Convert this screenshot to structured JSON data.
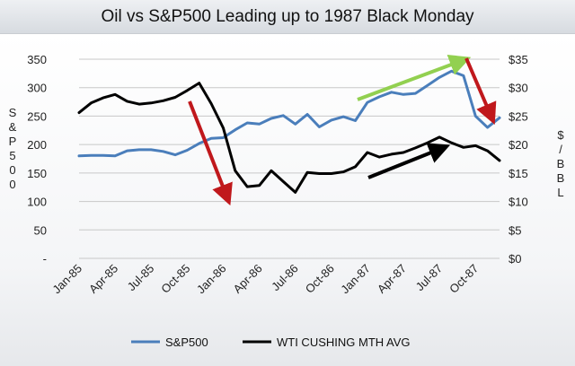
{
  "chart_data": {
    "type": "line",
    "title": "Oil vs S&P500 Leading up to 1987 Black Monday",
    "categories": [
      "Jan-85",
      "Feb-85",
      "Mar-85",
      "Apr-85",
      "May-85",
      "Jun-85",
      "Jul-85",
      "Aug-85",
      "Sep-85",
      "Oct-85",
      "Nov-85",
      "Dec-85",
      "Jan-86",
      "Feb-86",
      "Mar-86",
      "Apr-86",
      "May-86",
      "Jun-86",
      "Jul-86",
      "Aug-86",
      "Sep-86",
      "Oct-86",
      "Nov-86",
      "Dec-86",
      "Jan-87",
      "Feb-87",
      "Mar-87",
      "Apr-87",
      "May-87",
      "Jun-87",
      "Jul-87",
      "Aug-87",
      "Sep-87",
      "Oct-87",
      "Nov-87",
      "Dec-87"
    ],
    "x_tick_labels": [
      "Jan-85",
      "Apr-85",
      "Jul-85",
      "Oct-85",
      "Jan-86",
      "Apr-86",
      "Jul-86",
      "Oct-86",
      "Jan-87",
      "Apr-87",
      "Jul-87",
      "Oct-87"
    ],
    "y_left": {
      "label": "S&P500",
      "ticks": [
        "-",
        "50",
        "100",
        "150",
        "200",
        "250",
        "300",
        "350"
      ],
      "min": 0,
      "max": 350
    },
    "y_right": {
      "label": "$/BBL",
      "ticks": [
        "$0",
        "$5",
        "$10",
        "$15",
        "$20",
        "$25",
        "$30",
        "$35"
      ],
      "min": 0,
      "max": 35
    },
    "series": [
      {
        "name": "S&P500",
        "axis": "left",
        "color": "#4a7ebb",
        "values": [
          180,
          181,
          181,
          180,
          189,
          191,
          191,
          188,
          182,
          190,
          202,
          211,
          212,
          226,
          238,
          236,
          246,
          251,
          236,
          253,
          231,
          243,
          249,
          242,
          274,
          284,
          292,
          288,
          290,
          304,
          318,
          329,
          321,
          250,
          230,
          247
        ]
      },
      {
        "name": "WTI CUSHING MTH AVG",
        "axis": "right",
        "color": "#000000",
        "values": [
          25.6,
          27.3,
          28.2,
          28.8,
          27.6,
          27.1,
          27.3,
          27.7,
          28.3,
          29.5,
          30.8,
          27.2,
          22.9,
          15.4,
          12.6,
          12.8,
          15.4,
          13.5,
          11.6,
          15.1,
          14.9,
          14.9,
          15.2,
          16.1,
          18.6,
          17.8,
          18.3,
          18.6,
          19.4,
          20.3,
          21.3,
          20.3,
          19.5,
          19.8,
          18.9,
          17.2
        ]
      }
    ],
    "annotations": [
      {
        "type": "arrow",
        "color": "#c0181c",
        "direction": "down"
      },
      {
        "type": "arrow",
        "color": "#92d050",
        "direction": "up"
      },
      {
        "type": "arrow",
        "color": "#000000",
        "direction": "up"
      },
      {
        "type": "arrow",
        "color": "#c0181c",
        "direction": "down"
      }
    ],
    "legend_position": "bottom",
    "grid": "horizontal"
  }
}
